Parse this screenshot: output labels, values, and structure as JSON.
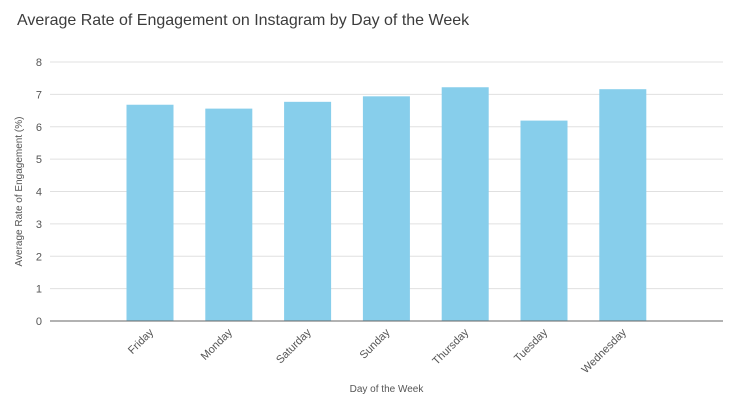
{
  "chart_data": {
    "type": "bar",
    "title": "Average Rate of Engagement on Instagram by Day of the Week",
    "xlabel": "Day of the Week",
    "ylabel": "Average Rate of Engagement (%)",
    "categories": [
      "Friday",
      "Monday",
      "Saturday",
      "Sunday",
      "Thursday",
      "Tuesday",
      "Wednesday"
    ],
    "values": [
      6.68,
      6.56,
      6.77,
      6.94,
      7.22,
      6.19,
      7.16
    ],
    "ylim": [
      0,
      8
    ],
    "yticks": [
      "0",
      "1",
      "2",
      "3",
      "4",
      "5",
      "6",
      "7",
      "8"
    ],
    "grid": true,
    "legend": "none",
    "colors": {
      "bar": "#87ceeb",
      "grid": "#e0e0e0",
      "axis": "#555555",
      "text": "#3c3c3c"
    }
  }
}
